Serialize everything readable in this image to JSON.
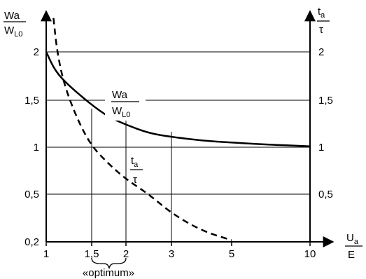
{
  "chart_data": {
    "type": "line",
    "x_axis": {
      "label_numerator": "U",
      "label_numerator_sub": "a",
      "label_denominator": "E",
      "ticks": [
        {
          "value": 1,
          "label": "1"
        },
        {
          "value": 1.5,
          "label": "1,5"
        },
        {
          "value": 2,
          "label": "2"
        },
        {
          "value": 3,
          "label": "3"
        },
        {
          "value": 5,
          "label": "5"
        },
        {
          "value": 10,
          "label": "10"
        }
      ],
      "range": [
        1,
        10
      ]
    },
    "y_axis_left": {
      "label_numerator": "Wa",
      "label_denominator": "W",
      "label_denominator_sub": "L0",
      "ticks": [
        {
          "value": 0.2,
          "label": "0,2"
        },
        {
          "value": 0.5,
          "label": "0,5"
        },
        {
          "value": 1,
          "label": "1"
        },
        {
          "value": 1.5,
          "label": "1,5"
        },
        {
          "value": 2,
          "label": "2"
        }
      ],
      "range": [
        0.2,
        2.4
      ]
    },
    "y_axis_right": {
      "label_numerator": "t",
      "label_numerator_sub": "a",
      "label_denominator": "τ",
      "ticks": [
        {
          "value": 0.5,
          "label": "0,5"
        },
        {
          "value": 1,
          "label": "1"
        },
        {
          "value": 1.5,
          "label": "1,5"
        },
        {
          "value": 2,
          "label": "2"
        }
      ]
    },
    "series": [
      {
        "label_numerator": "Wa",
        "label_denominator": "W",
        "label_denominator_sub": "L0",
        "style": "solid",
        "color": "#000000",
        "points": [
          [
            1,
            2.0
          ],
          [
            1.1,
            1.8
          ],
          [
            1.25,
            1.65
          ],
          [
            1.5,
            1.45
          ],
          [
            1.75,
            1.32
          ],
          [
            2,
            1.24
          ],
          [
            2.5,
            1.15
          ],
          [
            3,
            1.11
          ],
          [
            4,
            1.07
          ],
          [
            5,
            1.05
          ],
          [
            7,
            1.03
          ],
          [
            10,
            1.01
          ]
        ]
      },
      {
        "label_numerator": "t",
        "label_numerator_sub": "a",
        "label_denominator": "τ",
        "style": "dashed",
        "color": "#000000",
        "points": [
          [
            1.08,
            2.35
          ],
          [
            1.12,
            2.0
          ],
          [
            1.2,
            1.65
          ],
          [
            1.35,
            1.28
          ],
          [
            1.5,
            1.01
          ],
          [
            1.75,
            0.82
          ],
          [
            2,
            0.66
          ],
          [
            2.5,
            0.5
          ],
          [
            3,
            0.38
          ],
          [
            4,
            0.27
          ],
          [
            5,
            0.21
          ]
        ]
      }
    ],
    "annotation": "«optimum»",
    "reference_lines_x": [
      1.5,
      2,
      3
    ],
    "grid": "horizontal"
  }
}
